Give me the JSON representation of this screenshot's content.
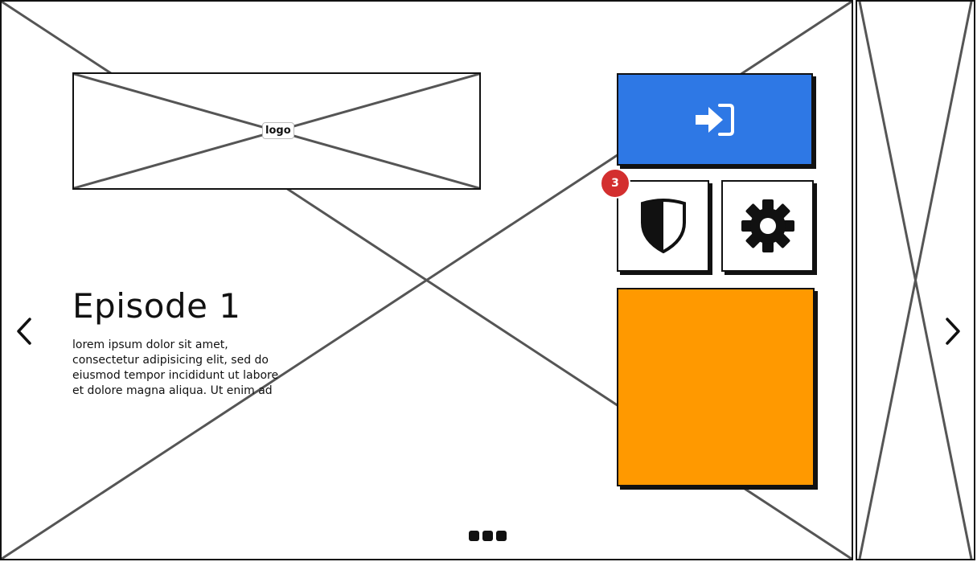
{
  "logo": {
    "label": "logo"
  },
  "episode": {
    "title": "Episode 1",
    "description": "lorem ipsum dolor sit amet, consectetur adipisicing elit, sed do eiusmod tempor incididunt ut labore et dolore magna aliqua. Ut enim ad"
  },
  "tiles": {
    "login": {
      "icon": "sign-in-icon",
      "color": "#2e78e5"
    },
    "security": {
      "icon": "shield-icon",
      "badge_count": "3"
    },
    "settings": {
      "icon": "gear-icon"
    },
    "featured": {
      "color": "#ff9900"
    }
  },
  "navigation": {
    "prev_icon": "chevron-left-icon",
    "next_icon": "chevron-right-icon",
    "pager_icon": "ellipsis-pager-icon"
  }
}
